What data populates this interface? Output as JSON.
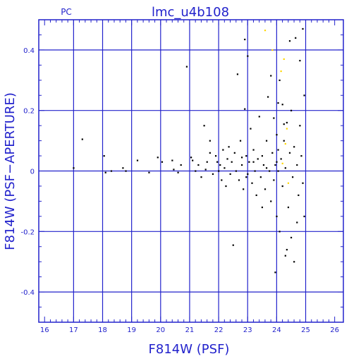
{
  "chart_data": {
    "type": "scatter",
    "title": "lmc_u4b108",
    "corner_label": "PC",
    "xlabel": "F814W (PSF)",
    "ylabel": "F814W (PSF−APERTURE)",
    "xlim": [
      15.8,
      26.3
    ],
    "ylim": [
      -0.5,
      0.5
    ],
    "x_ticks": [
      16,
      17,
      18,
      19,
      20,
      21,
      22,
      23,
      24,
      25,
      26
    ],
    "y_ticks": [
      -0.4,
      -0.2,
      0,
      0.2,
      0.4
    ],
    "x_gridlines": [
      17,
      18,
      19,
      20,
      21,
      22,
      23,
      24,
      25
    ],
    "y_gridlines": [
      -0.4,
      -0.2,
      0,
      0.2,
      0.4
    ],
    "grid": true,
    "colors": {
      "axes": "#2222cc",
      "points": "#000000",
      "highlight_points": "#ffd700"
    },
    "series": [
      {
        "color": "#000000",
        "points": [
          [
            17.0,
            0.01
          ],
          [
            17.3,
            0.105
          ],
          [
            18.05,
            0.05
          ],
          [
            18.1,
            -0.005
          ],
          [
            18.3,
            0.0
          ],
          [
            18.7,
            0.01
          ],
          [
            18.8,
            0.0
          ],
          [
            19.2,
            0.035
          ],
          [
            19.6,
            -0.005
          ],
          [
            19.9,
            0.045
          ],
          [
            20.05,
            0.03
          ],
          [
            20.4,
            0.035
          ],
          [
            20.45,
            0.005
          ],
          [
            20.6,
            -0.005
          ],
          [
            20.7,
            0.02
          ],
          [
            20.9,
            0.345
          ],
          [
            21.05,
            0.045
          ],
          [
            21.1,
            0.035
          ],
          [
            21.2,
            0.0
          ],
          [
            21.3,
            0.02
          ],
          [
            21.4,
            -0.02
          ],
          [
            21.5,
            0.15
          ],
          [
            21.55,
            0.005
          ],
          [
            21.6,
            0.03
          ],
          [
            21.7,
            0.1
          ],
          [
            21.7,
            0.06
          ],
          [
            21.8,
            -0.01
          ],
          [
            21.9,
            0.05
          ],
          [
            21.95,
            0.03
          ],
          [
            22.0,
            0.0
          ],
          [
            22.05,
            0.02
          ],
          [
            22.1,
            -0.03
          ],
          [
            22.15,
            0.07
          ],
          [
            22.2,
            0.01
          ],
          [
            22.25,
            -0.05
          ],
          [
            22.3,
            0.04
          ],
          [
            22.35,
            0.08
          ],
          [
            22.4,
            -0.01
          ],
          [
            22.45,
            0.03
          ],
          [
            22.5,
            -0.245
          ],
          [
            22.55,
            0.06
          ],
          [
            22.6,
            0.0
          ],
          [
            22.65,
            0.32
          ],
          [
            22.7,
            -0.03
          ],
          [
            22.75,
            0.1
          ],
          [
            22.8,
            0.02
          ],
          [
            22.85,
            -0.06
          ],
          [
            22.9,
            0.205
          ],
          [
            22.95,
            0.05
          ],
          [
            22.9,
            0.435
          ],
          [
            23.0,
            -0.01
          ],
          [
            23.05,
            0.03
          ],
          [
            23.1,
            0.14
          ],
          [
            23.15,
            -0.04
          ],
          [
            23.2,
            0.07
          ],
          [
            23.25,
            0.0
          ],
          [
            23.3,
            -0.08
          ],
          [
            23.35,
            0.04
          ],
          [
            23.4,
            0.18
          ],
          [
            23.45,
            -0.02
          ],
          [
            23.5,
            0.05
          ],
          [
            23.55,
            0.02
          ],
          [
            23.6,
            -0.06
          ],
          [
            23.65,
            0.1
          ],
          [
            23.7,
            0.245
          ],
          [
            23.75,
            0.0
          ],
          [
            23.8,
            -0.1
          ],
          [
            23.8,
            0.315
          ],
          [
            23.85,
            0.06
          ],
          [
            23.9,
            -0.03
          ],
          [
            23.9,
            0.175
          ],
          [
            23.95,
            0.02
          ],
          [
            24.0,
            -0.15
          ],
          [
            24.0,
            0.12
          ],
          [
            24.05,
            0.0
          ],
          [
            24.05,
            0.07
          ],
          [
            24.1,
            -0.2
          ],
          [
            24.1,
            0.3
          ],
          [
            24.15,
            0.04
          ],
          [
            24.2,
            -0.05
          ],
          [
            24.2,
            0.22
          ],
          [
            24.25,
            0.1
          ],
          [
            24.3,
            -0.28
          ],
          [
            24.3,
            0.01
          ],
          [
            24.35,
            0.16
          ],
          [
            24.4,
            -0.12
          ],
          [
            24.45,
            0.06
          ],
          [
            24.45,
            0.43
          ],
          [
            24.5,
            -0.22
          ],
          [
            24.5,
            0.2
          ],
          [
            24.55,
            -0.02
          ],
          [
            24.6,
            0.08
          ],
          [
            24.6,
            -0.3
          ],
          [
            24.65,
            0.44
          ],
          [
            24.7,
            0.02
          ],
          [
            24.75,
            -0.08
          ],
          [
            24.8,
            0.15
          ],
          [
            24.8,
            0.365
          ],
          [
            24.85,
            0.05
          ],
          [
            24.9,
            -0.04
          ],
          [
            24.9,
            0.47
          ],
          [
            24.95,
            0.25
          ],
          [
            24.95,
            -0.15
          ],
          [
            23.0,
            0.38
          ],
          [
            23.95,
            -0.335
          ],
          [
            24.05,
            0.225
          ],
          [
            24.25,
            0.155
          ],
          [
            24.35,
            -0.26
          ],
          [
            24.7,
            -0.17
          ],
          [
            23.2,
            0.03
          ],
          [
            22.95,
            -0.02
          ],
          [
            23.65,
            0.01
          ],
          [
            24.0,
            0.03
          ],
          [
            23.5,
            -0.12
          ],
          [
            22.8,
            0.045
          ]
        ]
      },
      {
        "color": "#ffd700",
        "points": [
          [
            23.6,
            0.465
          ],
          [
            23.85,
            0.4
          ],
          [
            24.15,
            0.33
          ],
          [
            24.25,
            0.37
          ],
          [
            24.35,
            0.14
          ],
          [
            24.4,
            -0.04
          ],
          [
            24.2,
            0.025
          ],
          [
            24.3,
            0.09
          ]
        ]
      }
    ]
  }
}
